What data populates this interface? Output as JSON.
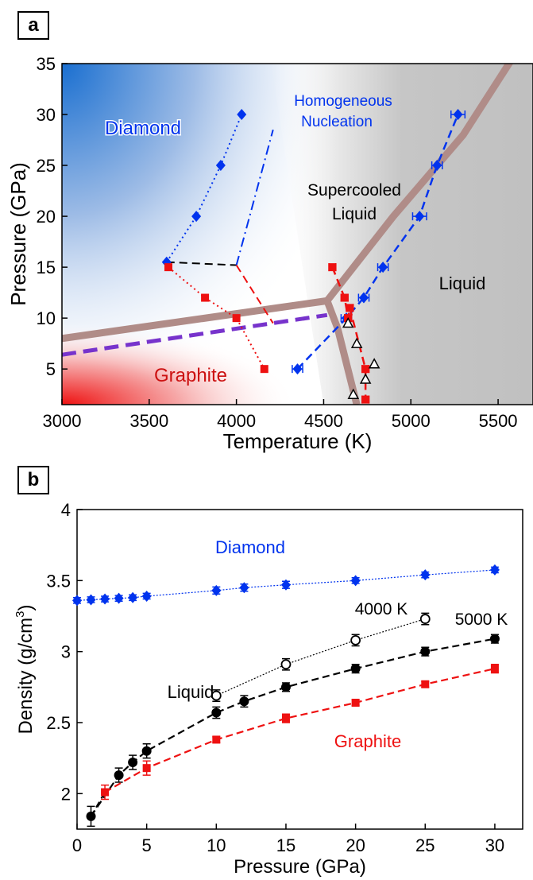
{
  "panels": {
    "a": "a",
    "b": "b"
  },
  "chart_data": [
    {
      "type": "scatter",
      "xlabel": "Temperature (K)",
      "ylabel": "Pressure (GPa)",
      "xlim": [
        3000,
        5700
      ],
      "ylim": [
        1.5,
        35
      ],
      "xticks": [
        "3000",
        "3500",
        "4000",
        "4500",
        "5000",
        "5500"
      ],
      "yticks": [
        "5",
        "10",
        "15",
        "20",
        "25",
        "30",
        "35"
      ],
      "regions": {
        "diamond": "Diamond",
        "graphite": "Graphite",
        "liquid": "Liquid",
        "supercooled": [
          "Supercooled",
          "Liquid"
        ],
        "nucleation": [
          "Homogeneous",
          "Nucleation"
        ]
      },
      "colors": {
        "diamond": "#0033ee",
        "graphite": "#ee1111",
        "boundary": "#b08c88",
        "dashed_boundary": "#7733cc",
        "black": "#000000"
      },
      "series": [
        {
          "marker": "diamond",
          "color": "#0033ee",
          "line": "dotted",
          "x": [
            3600,
            3770,
            3910,
            4030
          ],
          "y": [
            15.5,
            20,
            25,
            30
          ]
        },
        {
          "marker": "square",
          "color": "#ee1111",
          "line": "dotted",
          "x": [
            3610,
            3820,
            4000,
            4160
          ],
          "y": [
            15,
            12,
            10,
            5
          ]
        },
        {
          "marker": "diamond",
          "color": "#0033ee",
          "line": "dashed",
          "x": [
            4350,
            4630,
            4730,
            4840,
            5050,
            5150,
            5270
          ],
          "y": [
            5,
            10,
            12,
            15,
            20,
            25,
            30
          ],
          "xerr": [
            30,
            30,
            30,
            30,
            40,
            30,
            40
          ]
        },
        {
          "marker": "square",
          "color": "#ee1111",
          "line": "dashed",
          "x": [
            4550,
            4620,
            4640,
            4650,
            4740,
            4740
          ],
          "y": [
            15,
            12,
            10,
            11,
            5,
            2
          ],
          "xerr": [
            20,
            20,
            20,
            20,
            20,
            20
          ]
        },
        {
          "marker": "triangle-open",
          "color": "#000000",
          "line": "none",
          "x": [
            4640,
            4690,
            4790,
            4740,
            4670
          ],
          "y": [
            9.5,
            7.5,
            5.5,
            4,
            2.5
          ]
        }
      ],
      "guide_lines": [
        {
          "color": "#000000",
          "style": "dashed",
          "x": [
            3600,
            4000
          ],
          "y": [
            15.5,
            15.2
          ]
        },
        {
          "color": "#0033ee",
          "style": "dashdot",
          "x": [
            4000,
            4210
          ],
          "y": [
            15.2,
            28.5
          ]
        },
        {
          "color": "#ee1111",
          "style": "dashed",
          "x": [
            4000,
            4210
          ],
          "y": [
            15.2,
            9.5
          ]
        }
      ],
      "boundaries": [
        {
          "name": "graphite-liquid",
          "x": [
            3000,
            4520,
            4580,
            4690
          ],
          "y": [
            8,
            11.7,
            9,
            1.5
          ]
        },
        {
          "name": "diamond-liquid",
          "x": [
            4520,
            4900,
            5300,
            5600
          ],
          "y": [
            11.7,
            20,
            28,
            36
          ]
        },
        {
          "name": "graphite-diamond",
          "x": [
            3000,
            4520
          ],
          "y": [
            6.4,
            10.3
          ],
          "style": "dashed"
        }
      ]
    },
    {
      "type": "line",
      "xlabel": "Pressure (GPa)",
      "ylabel": "Density (g/cm",
      "ylabel_sup": "3",
      "ylabel_end": ")",
      "xlim": [
        0,
        32
      ],
      "ylim": [
        1.75,
        4
      ],
      "xticks": [
        "0",
        "5",
        "10",
        "15",
        "20",
        "25",
        "30"
      ],
      "yticks": [
        "2",
        "2.5",
        "3",
        "3.5",
        "4"
      ],
      "labels": {
        "diamond": "Diamond",
        "liquid": "Liquid",
        "graphite": "Graphite",
        "t4000": "4000 K",
        "t5000": "5000 K"
      },
      "series": [
        {
          "name": "Diamond",
          "color": "#0033ee",
          "marker": "diamond",
          "line": "dotted",
          "x": [
            0,
            1,
            2,
            3,
            4,
            5,
            10,
            12,
            15,
            20,
            25,
            30
          ],
          "y": [
            3.36,
            3.365,
            3.37,
            3.375,
            3.38,
            3.39,
            3.43,
            3.45,
            3.47,
            3.5,
            3.54,
            3.575
          ],
          "yerr": [
            0.02,
            0.02,
            0.02,
            0.02,
            0.02,
            0.02,
            0.025,
            0.025,
            0.025,
            0.02,
            0.02,
            0.02
          ]
        },
        {
          "name": "4000 K",
          "color": "#000000",
          "marker": "circle-open",
          "line": "dotted",
          "x": [
            10,
            15,
            20,
            25
          ],
          "y": [
            2.69,
            2.91,
            3.08,
            3.23
          ],
          "yerr": [
            0.04,
            0.04,
            0.04,
            0.04
          ]
        },
        {
          "name": "5000 K",
          "color": "#000000",
          "marker": "circle",
          "line": "dashed",
          "x": [
            1,
            3,
            4,
            5,
            10,
            12,
            15,
            20,
            25,
            30
          ],
          "y": [
            1.84,
            2.13,
            2.22,
            2.3,
            2.57,
            2.65,
            2.75,
            2.88,
            3.0,
            3.09
          ],
          "yerr": [
            0.07,
            0.05,
            0.05,
            0.05,
            0.04,
            0.04,
            0.03,
            0.03,
            0.03,
            0.03
          ]
        },
        {
          "name": "Graphite",
          "color": "#ee1111",
          "marker": "square",
          "line": "dashed",
          "x": [
            2,
            5,
            10,
            15,
            20,
            25,
            30
          ],
          "y": [
            2.01,
            2.18,
            2.38,
            2.53,
            2.64,
            2.77,
            2.88
          ],
          "yerr": [
            0.05,
            0.05,
            0.02,
            0.03,
            0.02,
            0.02,
            0.03
          ]
        }
      ],
      "lead_line": {
        "x": [
          1,
          2
        ],
        "y": [
          1.84,
          2.01
        ]
      }
    }
  ]
}
